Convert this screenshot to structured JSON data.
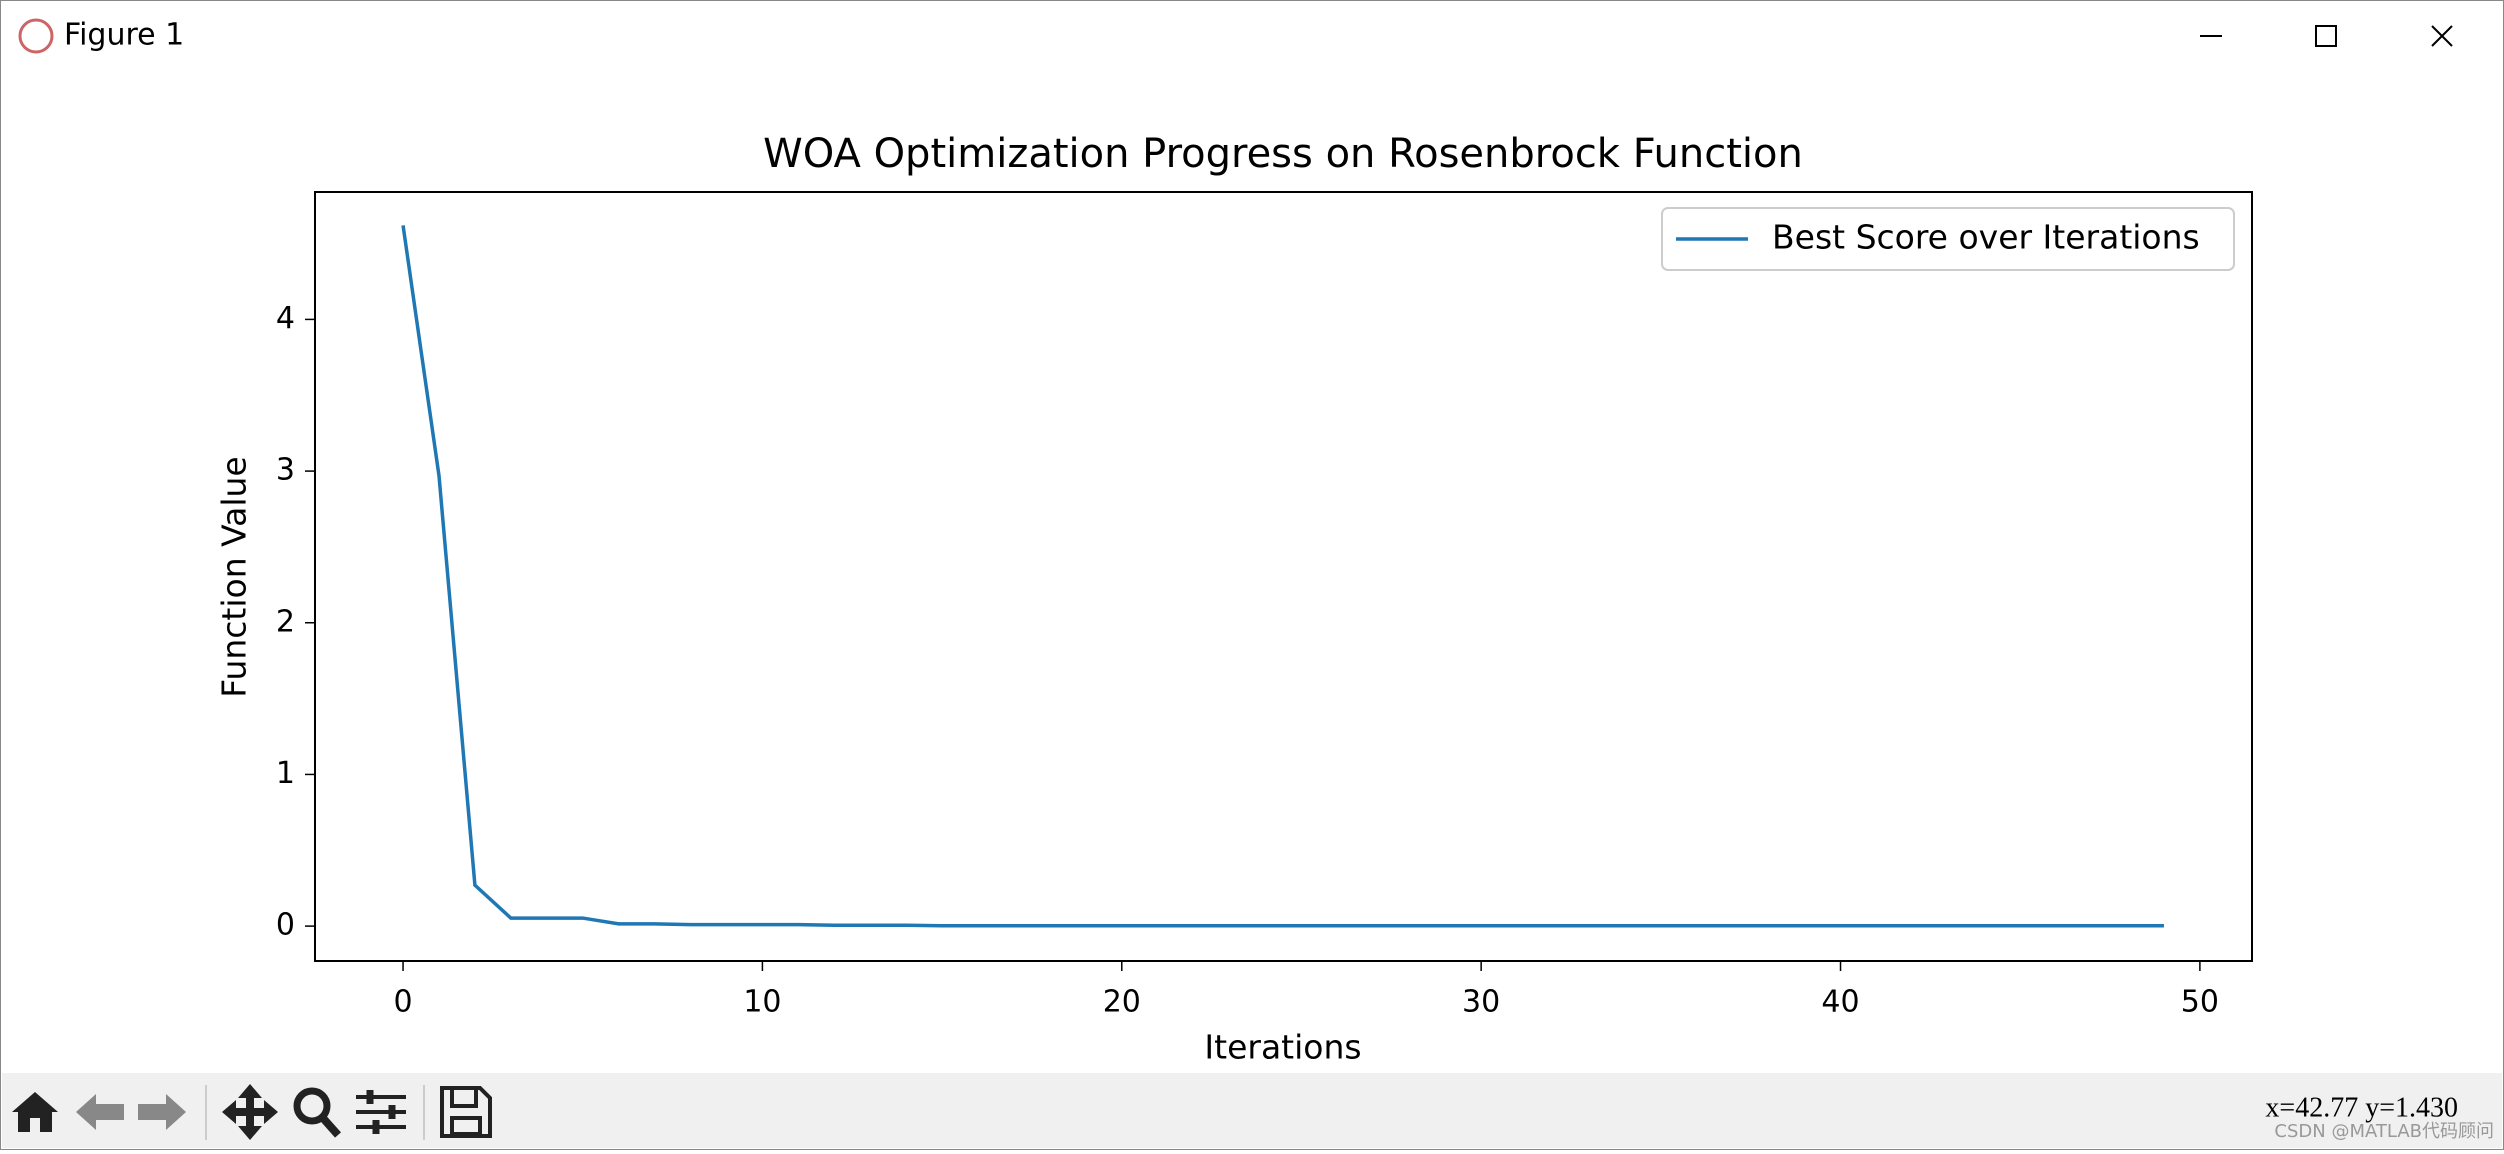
{
  "window": {
    "title": "Figure 1",
    "status": "x=42.77  y=1.430",
    "watermark": "CSDN @MATLAB代码顾问"
  },
  "chart_data": {
    "type": "line",
    "title": "WOA Optimization Progress on Rosenbrock Function",
    "x_label": "Iterations",
    "y_label": "Function Value",
    "x": [
      0,
      1,
      2,
      3,
      4,
      5,
      6,
      7,
      8,
      9,
      10,
      11,
      12,
      13,
      14,
      15,
      16,
      17,
      18,
      19,
      20,
      21,
      22,
      23,
      24,
      25,
      26,
      27,
      28,
      29,
      30,
      31,
      32,
      33,
      34,
      35,
      36,
      37,
      38,
      39,
      40,
      41,
      42,
      43,
      44,
      45,
      46,
      47,
      48,
      49
    ],
    "series": [
      {
        "name": "Best Score over Iterations",
        "color": "#1f77b4",
        "values": [
          4.62,
          2.97,
          0.27,
          0.053,
          0.053,
          0.053,
          0.015,
          0.015,
          0.01,
          0.01,
          0.01,
          0.01,
          0.006,
          0.006,
          0.006,
          0.002,
          0.002,
          0.002,
          0.002,
          0.002,
          0.002,
          0.002,
          0.002,
          0.002,
          0.002,
          0.002,
          0.002,
          0.002,
          0.002,
          0.002,
          0.002,
          0.002,
          0.002,
          0.002,
          0.002,
          0.002,
          0.002,
          0.002,
          0.002,
          0.002,
          0.002,
          0.002,
          0.002,
          0.002,
          0.002,
          0.002,
          0.002,
          0.002,
          0.002,
          0.002
        ]
      }
    ],
    "xlim": [
      -2.45,
      51.45
    ],
    "ylim": [
      -0.23,
      4.84
    ],
    "xticks": [
      0,
      10,
      20,
      30,
      40,
      50
    ],
    "yticks": [
      0,
      1,
      2,
      3,
      4
    ],
    "legend": "upper right",
    "grid": false
  }
}
